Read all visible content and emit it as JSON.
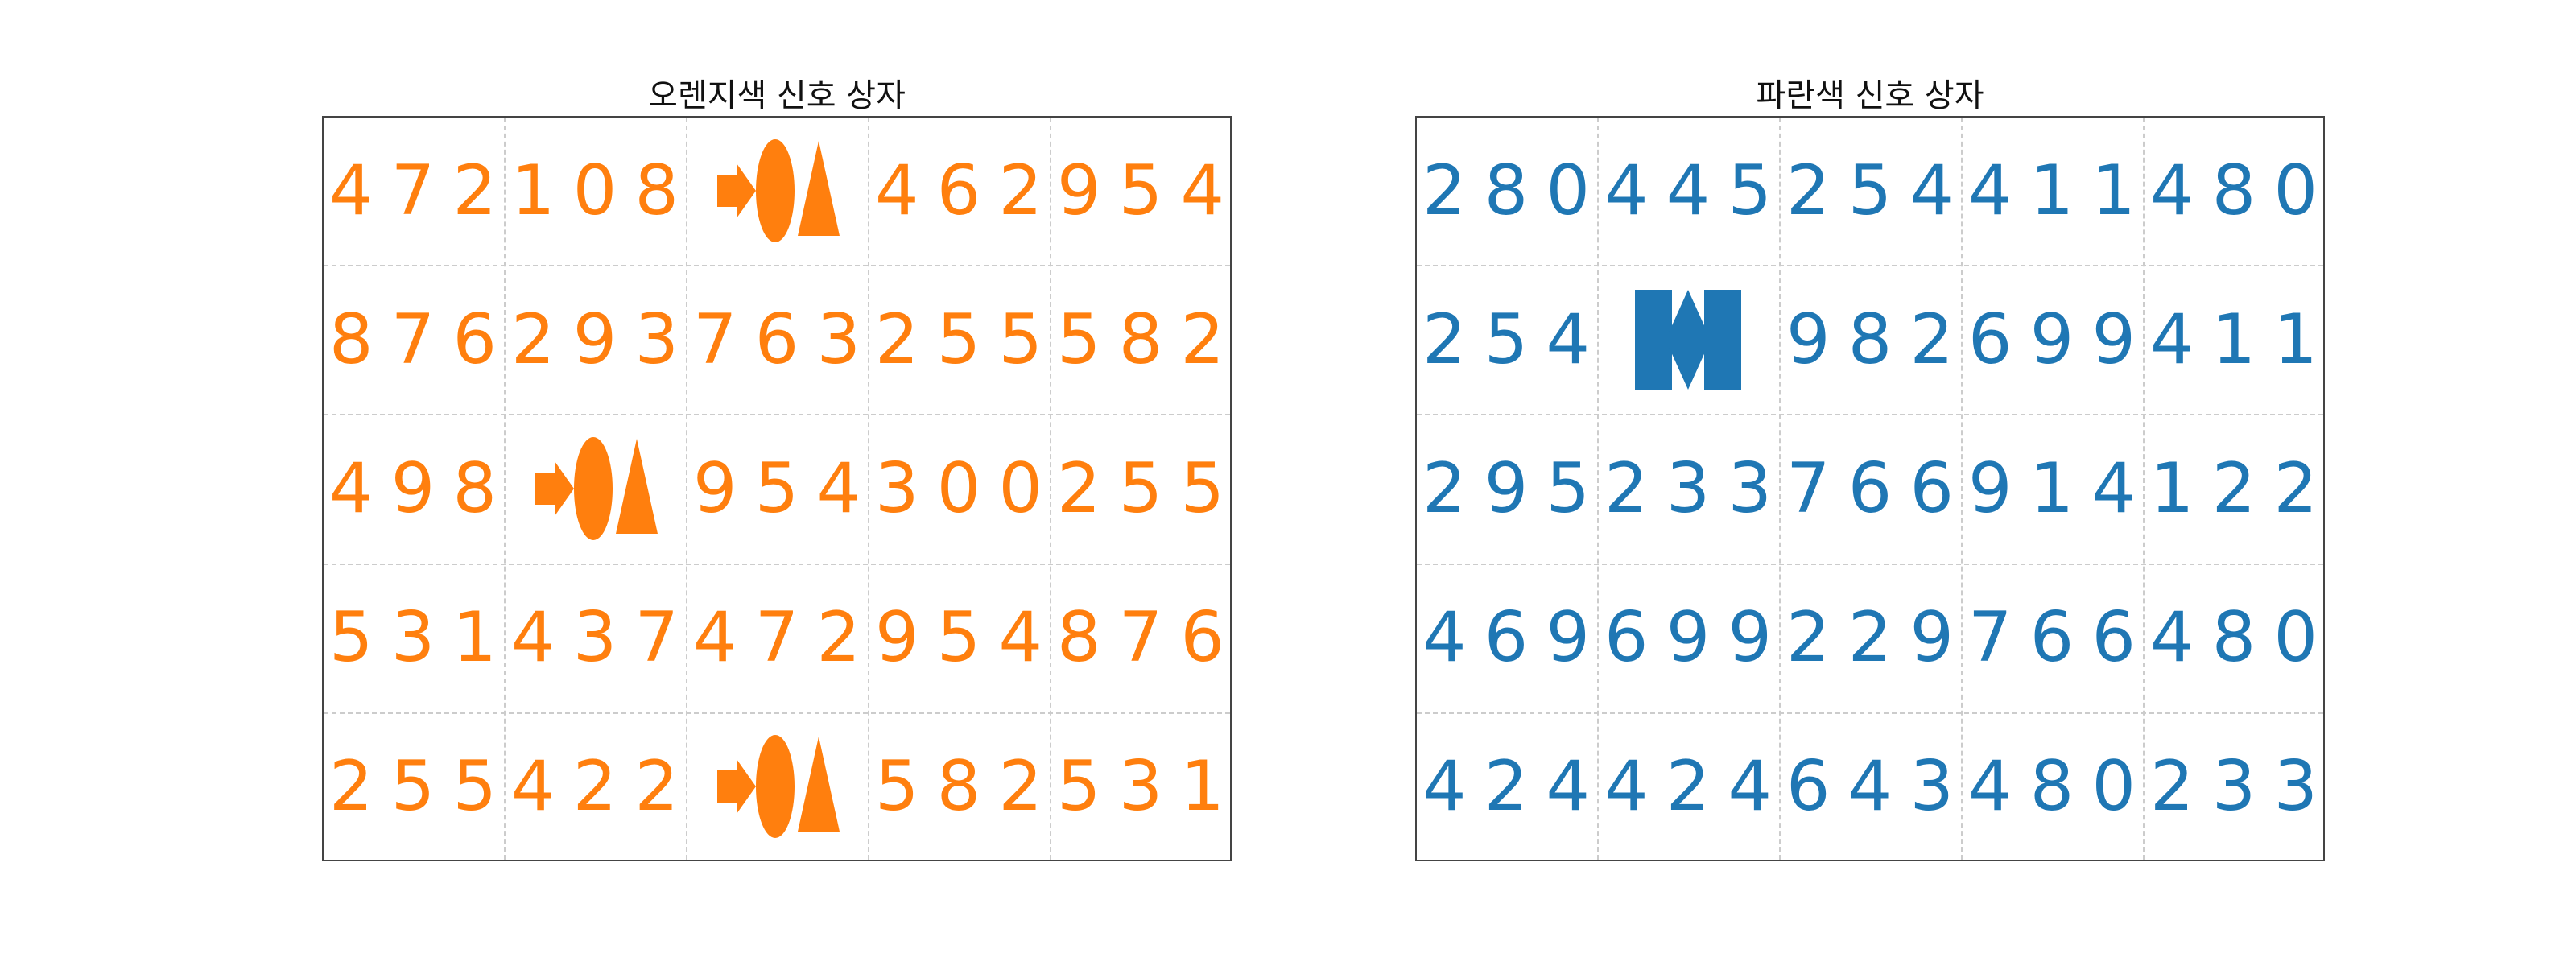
{
  "panels": [
    {
      "title": "오렌지색 신호 상자",
      "color": "#ff7f0e",
      "grid": [
        [
          "472",
          "108",
          null,
          "462",
          "954"
        ],
        [
          "876",
          "293",
          "763",
          "255",
          "582"
        ],
        [
          "498",
          null,
          "954",
          "300",
          "255"
        ],
        [
          "531",
          "437",
          "472",
          "954",
          "876"
        ],
        [
          "255",
          "422",
          null,
          "582",
          "531"
        ]
      ],
      "symbols": [
        {
          "row": 0,
          "col": 2,
          "icon": "arrow-ellipse-triangle-icon"
        },
        {
          "row": 2,
          "col": 1,
          "icon": "arrow-ellipse-triangle-icon"
        },
        {
          "row": 4,
          "col": 2,
          "icon": "arrow-ellipse-triangle-icon"
        }
      ]
    },
    {
      "title": "파란색 신호 상자",
      "color": "#1f77b4",
      "grid": [
        [
          "280",
          "445",
          "254",
          "411",
          "480"
        ],
        [
          "254",
          null,
          "982",
          "699",
          "411"
        ],
        [
          "295",
          "233",
          "766",
          "914",
          "122"
        ],
        [
          "469",
          "699",
          "229",
          "766",
          "480"
        ],
        [
          "424",
          "424",
          "643",
          "480",
          "233"
        ]
      ],
      "symbols": [
        {
          "row": 1,
          "col": 1,
          "icon": "bar-diamond-bar-icon"
        }
      ]
    }
  ]
}
